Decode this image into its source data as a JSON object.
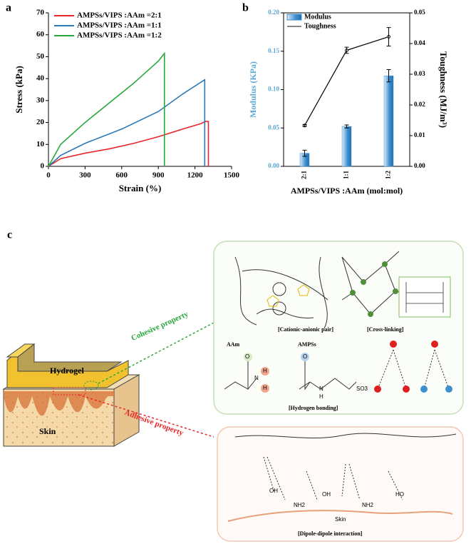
{
  "chart_data": [
    {
      "type": "line",
      "panel": "a",
      "x_label": "Strain (%)",
      "y_label": "Stress (kPa)",
      "xlim": [
        0,
        1500
      ],
      "xticks": [
        0,
        300,
        600,
        900,
        1200,
        1500
      ],
      "ylim": [
        0,
        70
      ],
      "yticks": [
        0,
        10,
        20,
        30,
        40,
        50,
        60,
        70
      ],
      "legend": "upper left",
      "series": [
        {
          "name": "AMPSs/VIPS :AAm =2:1",
          "color": "#e8262a",
          "x": [
            0,
            100,
            300,
            500,
            700,
            900,
            1100,
            1250,
            1285,
            1310,
            1310
          ],
          "values": [
            0,
            3.5,
            6,
            8,
            10.5,
            13.5,
            17,
            19.5,
            20.5,
            20.5,
            0
          ]
        },
        {
          "name": "AMPSs/VIPS :AAm =1:1",
          "color": "#2a78b5",
          "x": [
            0,
            100,
            300,
            600,
            900,
            1100,
            1280,
            1280
          ],
          "values": [
            0,
            5,
            10.5,
            17,
            25,
            33,
            39.5,
            0
          ]
        },
        {
          "name": "AMPSs/VIPS :AAm =1:2",
          "color": "#27a83b",
          "x": [
            0,
            100,
            300,
            500,
            700,
            900,
            950,
            950
          ],
          "values": [
            0,
            10,
            20,
            29,
            38,
            48,
            51.5,
            0
          ]
        }
      ]
    },
    {
      "type": "bar",
      "panel": "b",
      "x_label": "AMPSs/VIPS :AAm (mol:mol)",
      "y_label": "Modulus (KPa)",
      "y2_label": "Toughness (MJ/m³)",
      "categories": [
        "2:1",
        "1:1",
        "1:2"
      ],
      "ylim": [
        0,
        0.2
      ],
      "yticks": [
        {
          "value": 0,
          "label": "0.00"
        },
        {
          "value": 0.05,
          "label": "0.05"
        },
        {
          "value": 0.1,
          "label": "0.10"
        },
        {
          "value": 0.15,
          "label": "0.15"
        },
        {
          "value": 0.2,
          "label": "0.20"
        }
      ],
      "y2lim": [
        0,
        0.05
      ],
      "y2ticks": [
        {
          "value": 0,
          "label": "0.00"
        },
        {
          "value": 0.01,
          "label": "0.01"
        },
        {
          "value": 0.02,
          "label": "0.02"
        },
        {
          "value": 0.03,
          "label": "0.03"
        },
        {
          "value": 0.04,
          "label": "0.04"
        },
        {
          "value": 0.05,
          "label": "0.05"
        }
      ],
      "legend": "upper left",
      "y_label_color": "#5aa7d6",
      "series": [
        {
          "name": "Modulus",
          "color": "#3d8fd0",
          "values": [
            0.017,
            0.052,
            0.118
          ],
          "errors": [
            0.004,
            0.002,
            0.008
          ]
        },
        {
          "name": "Toughness",
          "color": "#111111",
          "type": "line",
          "axis": "y2",
          "values": [
            0.0133,
            0.0378,
            0.0422
          ],
          "errors": [
            0.0003,
            0.001,
            0.003
          ]
        }
      ]
    }
  ],
  "diagram": {
    "panel": "c",
    "hydrogel": "Hydrogel",
    "skin": "Skin",
    "cohesive": "Cohesive property",
    "adhesive": "Adhesive property",
    "captions": [
      "[Cationic-anionic pair]",
      "[Cross-linking]",
      "[Hydrogen bonding]",
      "[Dipole-dipole interaction]"
    ],
    "aam": "AAm",
    "ampss": "AMPSs",
    "skin_surface": "Skin",
    "chem": [
      "O",
      "N",
      "H",
      "H",
      "O",
      "N",
      "H",
      "SO3",
      "OH",
      "NH2",
      "OH",
      "NH2",
      "HO"
    ]
  }
}
